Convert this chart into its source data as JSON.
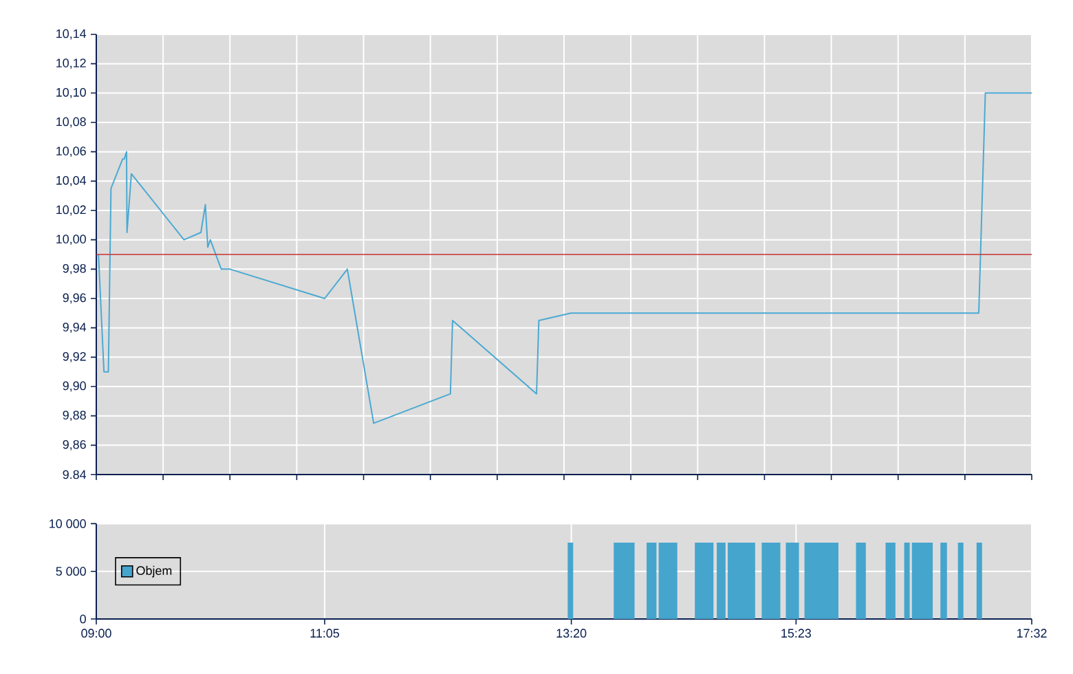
{
  "chart_data": [
    {
      "type": "line",
      "color": "#4ba9d2",
      "grid": true,
      "tick_labels": "y",
      "x": [
        9.02,
        9.07,
        9.11,
        9.134,
        9.24,
        9.255,
        9.276,
        9.28,
        9.32,
        9.8,
        9.954,
        9.995,
        10.017,
        10.04,
        10.14,
        10.22,
        11.083,
        11.29,
        11.53,
        12.23,
        12.25,
        13.016,
        13.037,
        13.33,
        17.05,
        17.11,
        17.533
      ],
      "values": [
        9.99,
        9.91,
        9.91,
        10.035,
        10.055,
        10.055,
        10.06,
        10.005,
        10.045,
        10.0,
        10.005,
        10.024,
        9.995,
        10.0,
        9.98,
        9.98,
        9.96,
        9.98,
        9.875,
        9.895,
        9.945,
        9.895,
        9.945,
        9.95,
        9.95,
        10.1,
        10.1
      ],
      "xlim": [
        9,
        17.5333
      ],
      "xticks": [
        {
          "value": 9,
          "label": null
        },
        {
          "value": 9.6095,
          "label": null
        },
        {
          "value": 10.219,
          "label": null
        },
        {
          "value": 10.8286,
          "label": null
        },
        {
          "value": 11.4381,
          "label": null
        },
        {
          "value": 12.0476,
          "label": null
        },
        {
          "value": 12.6571,
          "label": null
        },
        {
          "value": 13.2667,
          "label": null
        },
        {
          "value": 13.8762,
          "label": null
        },
        {
          "value": 14.4857,
          "label": null
        },
        {
          "value": 15.0952,
          "label": null
        },
        {
          "value": 15.7048,
          "label": null
        },
        {
          "value": 16.3143,
          "label": null
        },
        {
          "value": 16.9238,
          "label": null
        },
        {
          "value": 17.5333,
          "label": null
        }
      ],
      "ylim": [
        9.84,
        10.14
      ],
      "yticks": [
        {
          "value": 9.84,
          "label": "9.84"
        },
        {
          "value": 9.86,
          "label": "9,86"
        },
        {
          "value": 9.88,
          "label": "9,88"
        },
        {
          "value": 9.9,
          "label": "9,90"
        },
        {
          "value": 9.92,
          "label": "9,92"
        },
        {
          "value": 9.94,
          "label": "9,94"
        },
        {
          "value": 9.96,
          "label": "9,96"
        },
        {
          "value": 9.98,
          "label": "9,98"
        },
        {
          "value": 10.0,
          "label": "10,00"
        },
        {
          "value": 10.02,
          "label": "10,02"
        },
        {
          "value": 10.04,
          "label": "10,04"
        },
        {
          "value": 10.06,
          "label": "10,06"
        },
        {
          "value": 10.08,
          "label": "10,08"
        },
        {
          "value": 10.1,
          "label": "10,10"
        },
        {
          "value": 10.12,
          "label": "10,12"
        },
        {
          "value": 10.14,
          "label": "10,14"
        }
      ],
      "ref_lines": [
        {
          "axis": "y",
          "value": 9.99,
          "color": "#c83232"
        }
      ]
    },
    {
      "type": "histogram",
      "grid": true,
      "legend": "left",
      "bins": [
        13.3,
        13.35,
        13.72,
        13.91,
        14.02,
        14.11,
        14.13,
        14.3,
        14.46,
        14.63,
        14.66,
        14.74,
        14.76,
        15.01,
        15.07,
        15.24,
        15.29,
        15.41,
        15.46,
        15.77,
        15.93,
        16.02,
        16.2,
        16.29,
        16.37,
        16.42,
        16.44,
        16.63,
        16.7,
        16.76,
        16.86,
        16.91,
        17.03,
        17.08
      ],
      "series": [
        {
          "name": "Objem",
          "color": "#46a5cd",
          "values": [
            8000,
            null,
            8000,
            null,
            8000,
            null,
            8000,
            null,
            8000,
            null,
            8000,
            null,
            8000,
            null,
            8000,
            null,
            8000,
            null,
            8000,
            null,
            8000,
            null,
            8000,
            null,
            8000,
            null,
            8000,
            null,
            8000,
            null,
            8000,
            null,
            8000
          ]
        }
      ],
      "xlim": [
        9,
        17.5333
      ],
      "xticks": [
        {
          "value": 9,
          "label": "09:00"
        },
        {
          "value": 11.0833,
          "label": "11:05"
        },
        {
          "value": 13.3333,
          "label": "13:20"
        },
        {
          "value": 15.3833,
          "label": "15:23"
        },
        {
          "value": 17.5333,
          "label": "17:32"
        }
      ],
      "ylim": [
        0,
        10000
      ],
      "yticks": [
        0,
        {
          "value": 5000,
          "label": "5 000"
        },
        {
          "value": 10000,
          "label": "10 000"
        }
      ]
    }
  ]
}
